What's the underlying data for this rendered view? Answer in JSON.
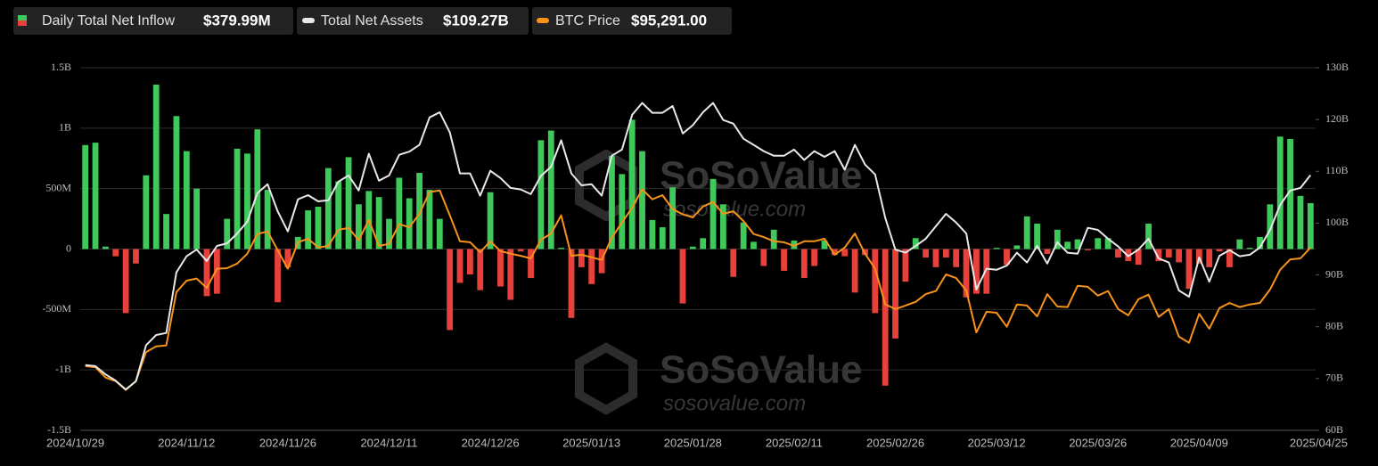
{
  "chart_data": {
    "type": "bar",
    "watermark": "SoSoValue",
    "watermark_url": "sosovalue.com",
    "categories": [
      "2024/10/29",
      null,
      null,
      null,
      null,
      null,
      null,
      null,
      null,
      null,
      "2024/11/12",
      null,
      null,
      null,
      null,
      null,
      null,
      null,
      null,
      null,
      "2024/11/26",
      null,
      null,
      null,
      null,
      null,
      null,
      null,
      null,
      null,
      "2024/12/11",
      null,
      null,
      null,
      null,
      null,
      null,
      null,
      null,
      null,
      "2024/12/26",
      null,
      null,
      null,
      null,
      null,
      null,
      null,
      null,
      null,
      "2025/01/13",
      null,
      null,
      null,
      null,
      null,
      null,
      null,
      null,
      null,
      "2025/01/28",
      null,
      null,
      null,
      null,
      null,
      null,
      null,
      null,
      null,
      "2025/02/11",
      null,
      null,
      null,
      null,
      null,
      null,
      null,
      null,
      null,
      "2025/02/26",
      null,
      null,
      null,
      null,
      null,
      null,
      null,
      null,
      null,
      "2025/03/12",
      null,
      null,
      null,
      null,
      null,
      null,
      null,
      null,
      null,
      "2025/03/26",
      null,
      null,
      null,
      null,
      null,
      null,
      null,
      null,
      null,
      "2025/04/09",
      null,
      null,
      null,
      null,
      null,
      null,
      null,
      null,
      null,
      null,
      "2025/04/25"
    ],
    "series": [
      {
        "name": "Daily Total Net Inflow",
        "type": "bar",
        "axis": "y",
        "value_label": "$379.99M",
        "positive_color": "#3ec95a",
        "negative_color": "#e8413c",
        "values": [
          860,
          880,
          20,
          -60,
          -530,
          -120,
          610,
          1360,
          290,
          1100,
          810,
          500,
          -390,
          -370,
          250,
          830,
          790,
          990,
          490,
          -440,
          -150,
          100,
          320,
          350,
          670,
          560,
          760,
          370,
          480,
          430,
          250,
          590,
          420,
          630,
          490,
          250,
          -670,
          -280,
          -210,
          -340,
          470,
          -310,
          -420,
          -20,
          -240,
          900,
          980,
          10,
          -570,
          -150,
          -290,
          -200,
          770,
          620,
          1070,
          810,
          240,
          180,
          510,
          -450,
          20,
          90,
          580,
          370,
          -230,
          220,
          60,
          -140,
          160,
          -180,
          70,
          -240,
          -140,
          70,
          -50,
          -60,
          -360,
          -50,
          -530,
          -1130,
          -740,
          -270,
          90,
          -70,
          -150,
          -70,
          -150,
          -400,
          -370,
          -370,
          10,
          -130,
          30,
          270,
          210,
          -40,
          160,
          60,
          80,
          -10,
          90,
          90,
          -70,
          -100,
          -130,
          210,
          -100,
          -70,
          -110,
          -330,
          -120,
          -150,
          -20,
          -150,
          80,
          10,
          100,
          370,
          930,
          910,
          440,
          379.99
        ]
      },
      {
        "name": "Total Net Assets",
        "type": "line",
        "axis": "y2",
        "value_label": "$109.27B",
        "color": "#e8e8e8",
        "values": [
          72.6,
          72.4,
          70.8,
          69.6,
          67.9,
          69.5,
          76.4,
          78.4,
          78.8,
          90.5,
          93.6,
          94.9,
          92.7,
          95.6,
          96.1,
          98.0,
          100.3,
          105.8,
          107.5,
          102.3,
          98.4,
          104.6,
          105.4,
          104.2,
          104.4,
          108.0,
          109.2,
          106.3,
          113.4,
          108.2,
          109.2,
          113.2,
          113.8,
          115.1,
          120.4,
          121.4,
          117.5,
          109.6,
          109.6,
          105.3,
          110.1,
          108.7,
          106.8,
          106.5,
          105.6,
          109.1,
          110.9,
          116.0,
          109.6,
          107.3,
          107.5,
          105.3,
          113.0,
          114.2,
          120.9,
          123.2,
          121.3,
          121.3,
          122.6,
          117.3,
          118.9,
          121.4,
          123.2,
          119.9,
          119.2,
          116.3,
          115.1,
          113.9,
          113.0,
          113.0,
          114.2,
          112.2,
          113.9,
          112.8,
          113.9,
          110.3,
          115.1,
          111.3,
          109.4,
          101.0,
          94.9,
          94.3,
          95.6,
          97.0,
          99.4,
          101.8,
          100.1,
          98.0,
          87.2,
          91.2,
          91.0,
          91.8,
          94.3,
          92.4,
          95.6,
          92.2,
          96.3,
          94.3,
          94.1,
          99.1,
          98.7,
          97.0,
          95.5,
          93.6,
          94.9,
          97.0,
          93.2,
          92.4,
          87.0,
          85.8,
          93.4,
          88.7,
          93.7,
          94.8,
          93.6,
          93.9,
          95.3,
          98.7,
          103.5,
          106.3,
          106.8,
          109.27
        ]
      },
      {
        "name": "BTC Price",
        "type": "line",
        "axis": "y3",
        "value_label": "$95,291.00",
        "color": "#f7931a",
        "values": [
          72400,
          72200,
          70200,
          69500,
          67800,
          69500,
          75100,
          76200,
          76400,
          86700,
          88900,
          89300,
          87500,
          91200,
          91300,
          92200,
          94100,
          97900,
          98400,
          94800,
          91200,
          96300,
          97000,
          95300,
          95600,
          98700,
          99100,
          96700,
          100600,
          95600,
          96000,
          99800,
          99200,
          101800,
          106000,
          106300,
          101500,
          96500,
          96300,
          94400,
          96500,
          94600,
          94100,
          93700,
          93200,
          96800,
          98000,
          101500,
          93700,
          93900,
          93400,
          92900,
          97200,
          100100,
          103000,
          106500,
          104600,
          105400,
          102700,
          101700,
          101100,
          103200,
          104100,
          101800,
          102300,
          100400,
          97900,
          97300,
          96500,
          96300,
          95600,
          96500,
          96500,
          97000,
          93900,
          95300,
          98000,
          94100,
          91200,
          84300,
          83400,
          84100,
          84800,
          86300,
          86900,
          90100,
          89400,
          87000,
          78900,
          82900,
          82700,
          80000,
          84300,
          84100,
          82000,
          86300,
          83900,
          83800,
          87900,
          87700,
          86000,
          86900,
          83400,
          82200,
          85300,
          86200,
          81900,
          83400,
          78100,
          76900,
          82500,
          79600,
          83600,
          84600,
          83800,
          84300,
          84600,
          87200,
          91000,
          93000,
          93200,
          95291
        ]
      }
    ],
    "ylim": [
      -1500,
      1500
    ],
    "yticks": [
      {
        "value": -1500,
        "label": "-1.5B"
      },
      {
        "value": -1000,
        "label": "-1B"
      },
      {
        "value": -500,
        "label": "-500M"
      },
      0,
      {
        "value": 500,
        "label": "500M"
      },
      {
        "value": 1000,
        "label": "1B"
      },
      {
        "value": 1500,
        "label": "1.5B"
      }
    ],
    "y2lim": [
      60,
      130
    ],
    "y2ticks": [
      {
        "value": 60,
        "label": "60B"
      },
      {
        "value": 70,
        "label": "70B"
      },
      {
        "value": 80,
        "label": "80B"
      },
      {
        "value": 90,
        "label": "90B"
      },
      {
        "value": 100,
        "label": "100B"
      },
      {
        "value": 110,
        "label": "110B"
      },
      {
        "value": 120,
        "label": "120B"
      },
      {
        "value": 130,
        "label": "130B"
      }
    ],
    "y3lim": [
      60000,
      130000
    ],
    "grid": true,
    "legend": "top-left"
  }
}
